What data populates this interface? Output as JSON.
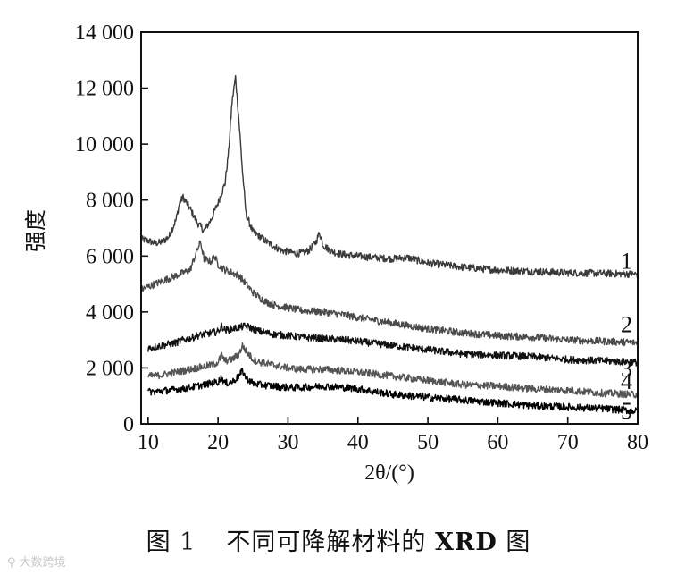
{
  "chart_data": {
    "type": "line",
    "xlabel": "2θ/(°)",
    "ylabel": "强度",
    "xlim": [
      9,
      80
    ],
    "ylim": [
      0,
      14000
    ],
    "x_ticks": [
      10,
      20,
      30,
      40,
      50,
      60,
      70,
      80
    ],
    "y_ticks": [
      0,
      2000,
      4000,
      6000,
      8000,
      10000,
      12000,
      14000
    ],
    "x_tick_labels": [
      "10",
      "20",
      "30",
      "40",
      "50",
      "60",
      "70",
      "80"
    ],
    "y_tick_labels": [
      "0",
      "2 000",
      "4 000",
      "6 000",
      "8 000",
      "10 000",
      "12 000",
      "14 000"
    ],
    "grid": false,
    "series": [
      {
        "name": "1",
        "color": "#3a3a3a",
        "x": [
          9,
          10,
          11,
          12,
          13,
          14,
          14.5,
          15,
          15.5,
          16,
          17,
          18,
          19,
          20,
          21,
          21.5,
          22,
          22.5,
          23,
          23.5,
          24,
          25,
          26,
          27,
          28,
          29,
          30,
          31,
          32,
          33,
          34,
          34.5,
          35,
          36,
          37,
          38,
          40,
          42,
          45,
          47,
          50,
          55,
          60,
          65,
          70,
          75,
          80
        ],
        "y": [
          6600,
          6550,
          6450,
          6500,
          6700,
          7300,
          7900,
          8100,
          7900,
          7700,
          7200,
          6900,
          7300,
          7900,
          8600,
          9700,
          11500,
          12400,
          10800,
          9000,
          7500,
          6850,
          6700,
          6500,
          6350,
          6200,
          6150,
          6100,
          6100,
          6200,
          6500,
          6850,
          6400,
          6200,
          6100,
          6050,
          6000,
          5950,
          5900,
          5950,
          5750,
          5600,
          5500,
          5450,
          5400,
          5380,
          5350
        ]
      },
      {
        "name": "2",
        "color": "#4a4a4a",
        "x": [
          9,
          10,
          11,
          12,
          13,
          14,
          15,
          16,
          17,
          17.5,
          18,
          19,
          19.5,
          20,
          21,
          22,
          23,
          24,
          25,
          26,
          27,
          28,
          30,
          32,
          35,
          38,
          40,
          45,
          50,
          55,
          60,
          65,
          70,
          75,
          80
        ],
        "y": [
          4800,
          4900,
          5000,
          5100,
          5200,
          5300,
          5400,
          5500,
          6200,
          6500,
          5900,
          5800,
          6000,
          5700,
          5500,
          5400,
          5300,
          5000,
          4700,
          4500,
          4350,
          4250,
          4150,
          4050,
          4000,
          3900,
          3800,
          3600,
          3400,
          3250,
          3150,
          3100,
          3000,
          2950,
          2900
        ]
      },
      {
        "name": "3",
        "color": "#111111",
        "x": [
          10,
          11,
          12,
          13,
          14,
          15,
          16,
          17,
          18,
          19,
          20,
          20.5,
          21,
          22,
          23,
          24,
          25,
          26,
          28,
          30,
          32,
          35,
          38,
          40,
          45,
          50,
          55,
          60,
          65,
          70,
          75,
          80
        ],
        "y": [
          2700,
          2750,
          2800,
          2850,
          2900,
          3000,
          3050,
          3150,
          3200,
          3250,
          3300,
          3500,
          3350,
          3400,
          3450,
          3500,
          3400,
          3300,
          3200,
          3150,
          3100,
          3050,
          3000,
          2950,
          2800,
          2650,
          2500,
          2450,
          2400,
          2300,
          2250,
          2200
        ]
      },
      {
        "name": "4",
        "color": "#555555",
        "x": [
          10,
          11,
          12,
          13,
          14,
          15,
          16,
          17,
          18,
          19,
          20,
          20.5,
          21,
          22,
          23,
          23.5,
          24,
          25,
          26,
          28,
          30,
          32,
          35,
          38,
          40,
          45,
          50,
          55,
          60,
          65,
          70,
          75,
          80
        ],
        "y": [
          1700,
          1720,
          1750,
          1800,
          1850,
          1900,
          1950,
          2000,
          2050,
          2100,
          2200,
          2450,
          2250,
          2300,
          2500,
          2800,
          2600,
          2300,
          2200,
          2100,
          2000,
          1950,
          1950,
          1900,
          1850,
          1700,
          1550,
          1400,
          1350,
          1250,
          1200,
          1100,
          1050
        ]
      },
      {
        "name": "5",
        "color": "#000000",
        "x": [
          10,
          11,
          12,
          13,
          14,
          15,
          16,
          17,
          18,
          19,
          20,
          20.5,
          21,
          22,
          23,
          23.5,
          24,
          25,
          26,
          28,
          30,
          32,
          35,
          38,
          40,
          45,
          50,
          55,
          60,
          65,
          70,
          75,
          80
        ],
        "y": [
          1150,
          1150,
          1180,
          1200,
          1230,
          1250,
          1300,
          1350,
          1400,
          1450,
          1500,
          1650,
          1450,
          1500,
          1700,
          1900,
          1650,
          1450,
          1400,
          1350,
          1300,
          1300,
          1350,
          1300,
          1250,
          1050,
          950,
          850,
          750,
          650,
          600,
          550,
          450
        ]
      }
    ]
  },
  "caption": {
    "figure_label": "图 1",
    "figure_title_cn": "不同可降解材料的",
    "figure_title_bold": "XRD",
    "figure_title_tail": "图"
  },
  "watermark": {
    "text": "大数跨境"
  }
}
